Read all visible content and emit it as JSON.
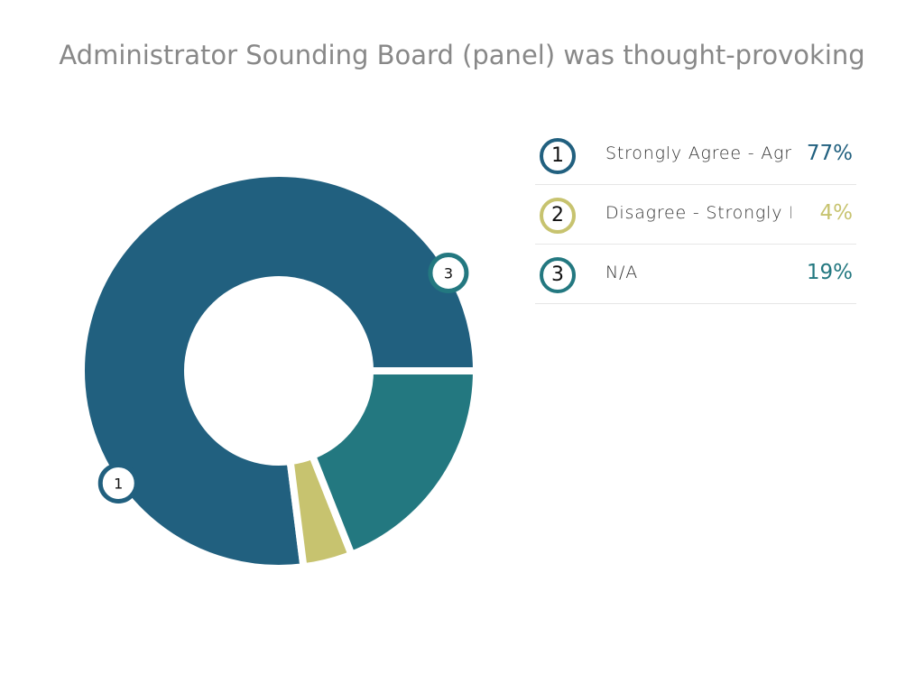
{
  "chart_data": {
    "type": "pie",
    "title": "Administrator Sounding Board (panel) was thought-provoking",
    "categories": [
      "Strongly Agree - Agree",
      "Disagree - Strongly Disagree",
      "N/A"
    ],
    "legend_labels": [
      "Strongly Agree - Agre",
      "Disagree - Strongly D",
      "N/A"
    ],
    "values": [
      77,
      4,
      19
    ],
    "value_labels": [
      "77%",
      "4%",
      "19%"
    ],
    "markers": [
      "1",
      "2",
      "3"
    ],
    "colors": [
      "#21607f",
      "#c7c36f",
      "#237880"
    ],
    "legend_position": "right",
    "donut": true
  }
}
